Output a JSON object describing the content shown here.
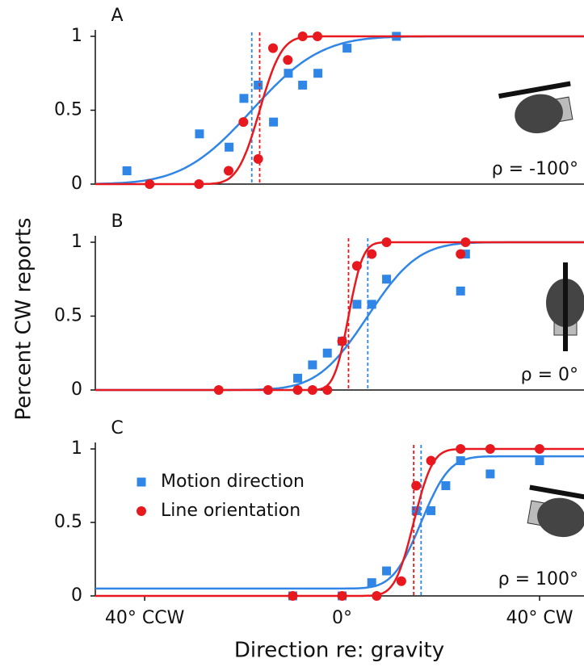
{
  "chart_data": [
    {
      "type": "scatter",
      "title": "A",
      "annotation": "ρ = -100°",
      "xlim": [
        -50,
        49
      ],
      "ylim": [
        0,
        1
      ],
      "yticks": [
        0,
        0.5,
        1
      ],
      "series": [
        {
          "color": "#2f86e6",
          "marker": "square",
          "x": [
            -43.6,
            -28.9,
            -22.9,
            -19.9,
            -17,
            -13.9,
            -10.9,
            -8,
            -4.9,
            1,
            11
          ],
          "values": [
            0.09,
            0.34,
            0.25,
            0.58,
            0.67,
            0.42,
            0.75,
            0.67,
            0.75,
            0.92,
            1
          ],
          "fit": {
            "mu": -18.3,
            "sigma": 11,
            "lower": 0,
            "upper": 1
          }
        },
        {
          "color": "#e8191e",
          "marker": "circle",
          "x": [
            -39,
            -29,
            -23,
            -20,
            -17,
            -14,
            -11,
            -8,
            -5
          ],
          "values": [
            0,
            0,
            0.09,
            0.42,
            0.17,
            0.92,
            0.84,
            1,
            1
          ],
          "fit": {
            "mu": -16.7,
            "sigma": 3.5,
            "lower": 0,
            "upper": 1
          }
        }
      ]
    },
    {
      "type": "scatter",
      "title": "B",
      "annotation": "ρ = 0°",
      "ylabel": "Percent CW reports",
      "xlim": [
        -50,
        49
      ],
      "ylim": [
        0,
        1
      ],
      "yticks": [
        0,
        0.5,
        1
      ],
      "series": [
        {
          "color": "#2f86e6",
          "marker": "square",
          "x": [
            -9,
            -6,
            -3,
            0,
            3,
            6,
            9,
            24,
            25
          ],
          "values": [
            0.08,
            0.17,
            0.25,
            0.33,
            0.58,
            0.58,
            0.75,
            0.67,
            0.92
          ],
          "fit": {
            "mu": 5.2,
            "sigma": 8,
            "lower": 0,
            "upper": 1
          }
        },
        {
          "color": "#e8191e",
          "marker": "circle",
          "x": [
            -25,
            -15,
            -9,
            -6,
            -3,
            0,
            3,
            6,
            9,
            24,
            25
          ],
          "values": [
            0,
            0,
            0,
            0,
            0,
            0.33,
            0.84,
            0.92,
            1,
            0.92,
            1
          ],
          "fit": {
            "mu": 1.3,
            "sigma": 2.3,
            "lower": 0,
            "upper": 1
          }
        }
      ]
    },
    {
      "type": "scatter",
      "title": "C",
      "annotation": "ρ = 100°",
      "xlabel": "Direction re: gravity",
      "xlim": [
        -50,
        49
      ],
      "ylim": [
        0,
        1
      ],
      "yticks": [
        0,
        0.5,
        1
      ],
      "xticks": [
        {
          "value": -40,
          "label": "40° CCW"
        },
        {
          "value": 0,
          "label": "0°"
        },
        {
          "value": 40,
          "label": "40° CW"
        }
      ],
      "legend": "left",
      "series": [
        {
          "name": "Motion direction",
          "color": "#2f86e6",
          "marker": "square",
          "x": [
            -10,
            0,
            6,
            9,
            15,
            18,
            21,
            24,
            30,
            40
          ],
          "values": [
            0,
            0,
            0.09,
            0.17,
            0.58,
            0.58,
            0.75,
            0.92,
            0.83,
            0.92
          ],
          "fit": {
            "mu": 16,
            "sigma": 4.5,
            "lower": 0.05,
            "upper": 0.95
          }
        },
        {
          "name": "Line orientation",
          "color": "#e8191e",
          "marker": "circle",
          "x": [
            -10,
            0,
            7,
            12,
            15,
            18,
            24,
            30,
            40
          ],
          "values": [
            0,
            0,
            0,
            0.1,
            0.75,
            0.92,
            1,
            1,
            1
          ],
          "fit": {
            "mu": 14.5,
            "sigma": 3,
            "lower": 0,
            "upper": 1
          }
        }
      ]
    }
  ]
}
